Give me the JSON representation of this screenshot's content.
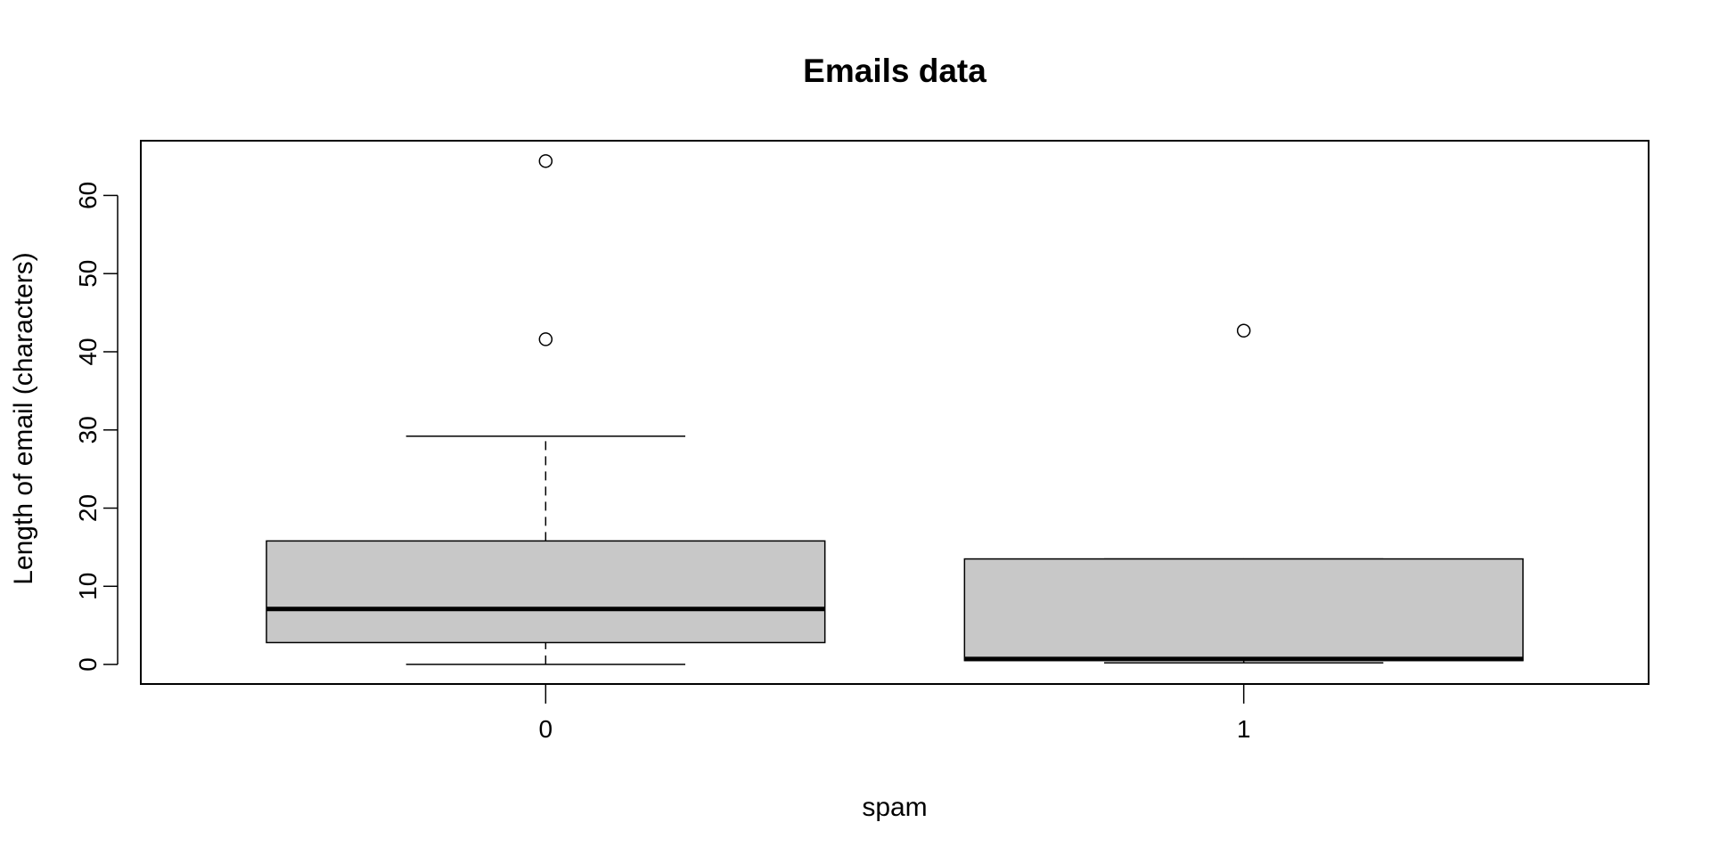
{
  "chart_data": {
    "type": "boxplot",
    "title": "Emails data",
    "xlabel": "spam",
    "ylabel": "Length of email (characters)",
    "categories": [
      "0",
      "1"
    ],
    "ylim": [
      -2.5,
      67
    ],
    "yticks": [
      0,
      10,
      20,
      30,
      40,
      50,
      60
    ],
    "box_fill": "#c8c8c8",
    "boxes": [
      {
        "category": "0",
        "whisker_low": 0.0,
        "q1": 2.8,
        "median": 7.1,
        "q3": 15.8,
        "whisker_high": 29.2,
        "outliers": [
          41.6,
          64.4
        ]
      },
      {
        "category": "1",
        "whisker_low": 0.2,
        "q1": 0.5,
        "median": 0.7,
        "q3": 13.5,
        "whisker_high": 13.5,
        "outliers": [
          42.7
        ]
      }
    ]
  }
}
